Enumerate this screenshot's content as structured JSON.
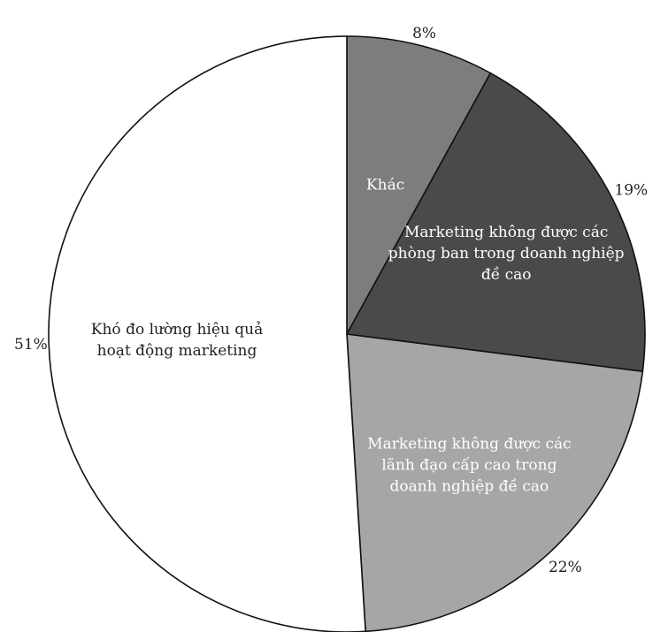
{
  "chart_data": {
    "type": "pie",
    "title": "",
    "start": "top",
    "direction": "clockwise",
    "slices": [
      {
        "label": "Khác",
        "label_lines": [
          "Khác"
        ],
        "value": 8,
        "percent_label": "8%",
        "color": "#7d7d7d",
        "text_color": "#ffffff"
      },
      {
        "label": "Marketing không được các phòng ban trong doanh nghiệp đề cao",
        "label_lines": [
          "Marketing không được các",
          "phòng ban trong doanh nghiệp",
          "đề cao"
        ],
        "value": 19,
        "percent_label": "19%",
        "color": "#4a4a4a",
        "text_color": "#ffffff"
      },
      {
        "label": "Marketing không được các lãnh đạo cấp cao trong doanh nghiệp đề cao",
        "label_lines": [
          "Marketing không được các",
          "lãnh đạo cấp cao trong",
          "doanh nghiệp đề cao"
        ],
        "value": 22,
        "percent_label": "22%",
        "color": "#a6a6a6",
        "text_color": "#ffffff"
      },
      {
        "label": "Khó đo lường hiệu quả hoạt động marketing",
        "label_lines": [
          "Khó đo lường hiệu quả",
          "hoạt động marketing"
        ],
        "value": 51,
        "percent_label": "51%",
        "color": "#ffffff",
        "text_color": "#222222"
      }
    ],
    "stroke_color": "#111111",
    "legend": "none"
  }
}
